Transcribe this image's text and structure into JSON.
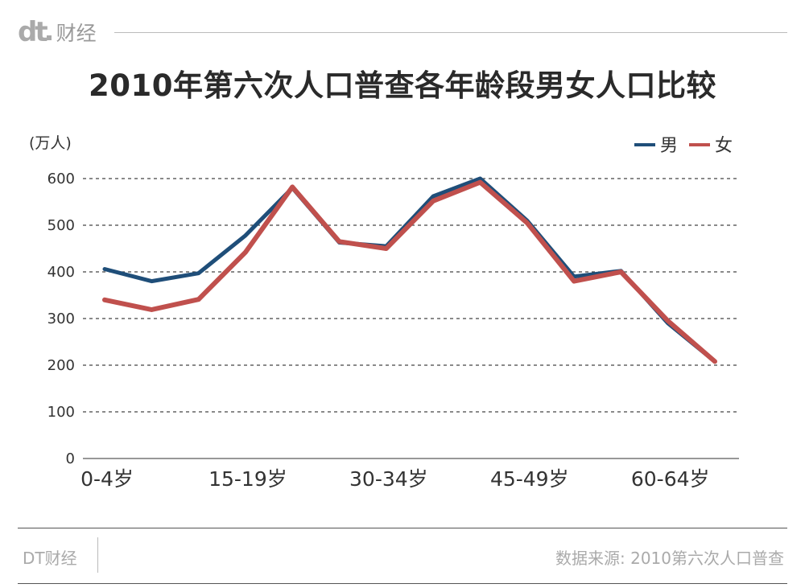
{
  "brand": {
    "logo": "dt",
    "name": "财经"
  },
  "footer": {
    "left": "DT财经",
    "source": "数据来源: 2010第六次人口普查"
  },
  "colors": {
    "male": "#1f4e79",
    "female": "#c0504d",
    "grid": "#444444",
    "axis_text": "#333333"
  },
  "chart_data": {
    "type": "line",
    "title": "2010年第六次人口普查各年龄段男女人口比较",
    "unit_label": "(万人)",
    "ylim": [
      0,
      600
    ],
    "yticks": [
      "0",
      "100",
      "200",
      "300",
      "400",
      "500",
      "600"
    ],
    "x_tick_labels": [
      {
        "index": 0,
        "label": "0-4岁"
      },
      {
        "index": 3,
        "label": "15-19岁"
      },
      {
        "index": 6,
        "label": "30-34岁"
      },
      {
        "index": 9,
        "label": "45-49岁"
      },
      {
        "index": 12,
        "label": "60-64岁"
      }
    ],
    "point_count": 14,
    "grid": "dashed horizontal",
    "legend_position": "top-right",
    "series": [
      {
        "name": "男",
        "color": "#1f4e79",
        "values": [
          406,
          380,
          397,
          478,
          580,
          463,
          455,
          562,
          600,
          510,
          390,
          402,
          290,
          208
        ]
      },
      {
        "name": "女",
        "color": "#c0504d",
        "values": [
          340,
          319,
          341,
          442,
          582,
          465,
          450,
          552,
          592,
          505,
          380,
          400,
          295,
          208
        ]
      }
    ]
  }
}
